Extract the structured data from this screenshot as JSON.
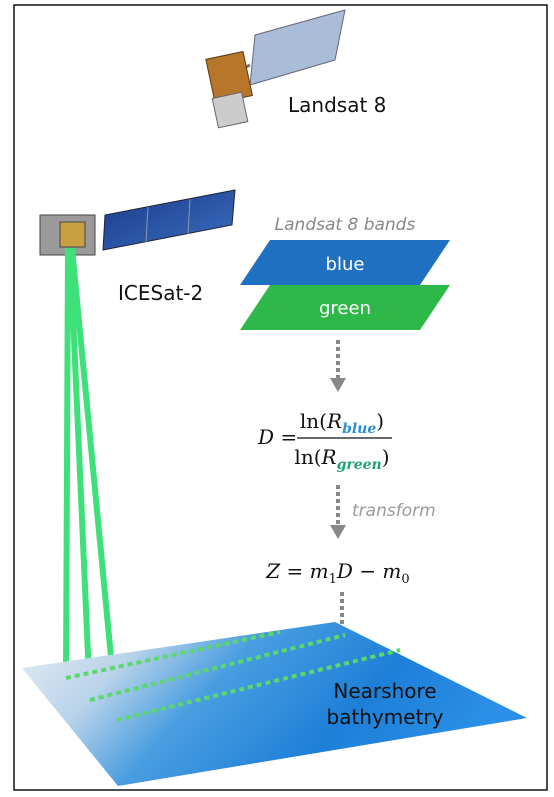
{
  "satellites": [
    {
      "label": "Landsat 8"
    },
    {
      "label": "ICESat-2"
    }
  ],
  "bands": {
    "title": "Landsat 8 bands",
    "layers": [
      "blue",
      "green"
    ]
  },
  "ratio": {
    "lhs": "D =",
    "numerator": [
      "ln(",
      "R",
      "blue",
      ")"
    ],
    "denominator": [
      "ln(",
      "R",
      "green",
      ")"
    ]
  },
  "transform_label": "transform",
  "model": [
    "Z = m",
    "1",
    "D − m",
    "0"
  ],
  "output": {
    "lines": [
      "Nearshore",
      "bathymetry"
    ]
  }
}
